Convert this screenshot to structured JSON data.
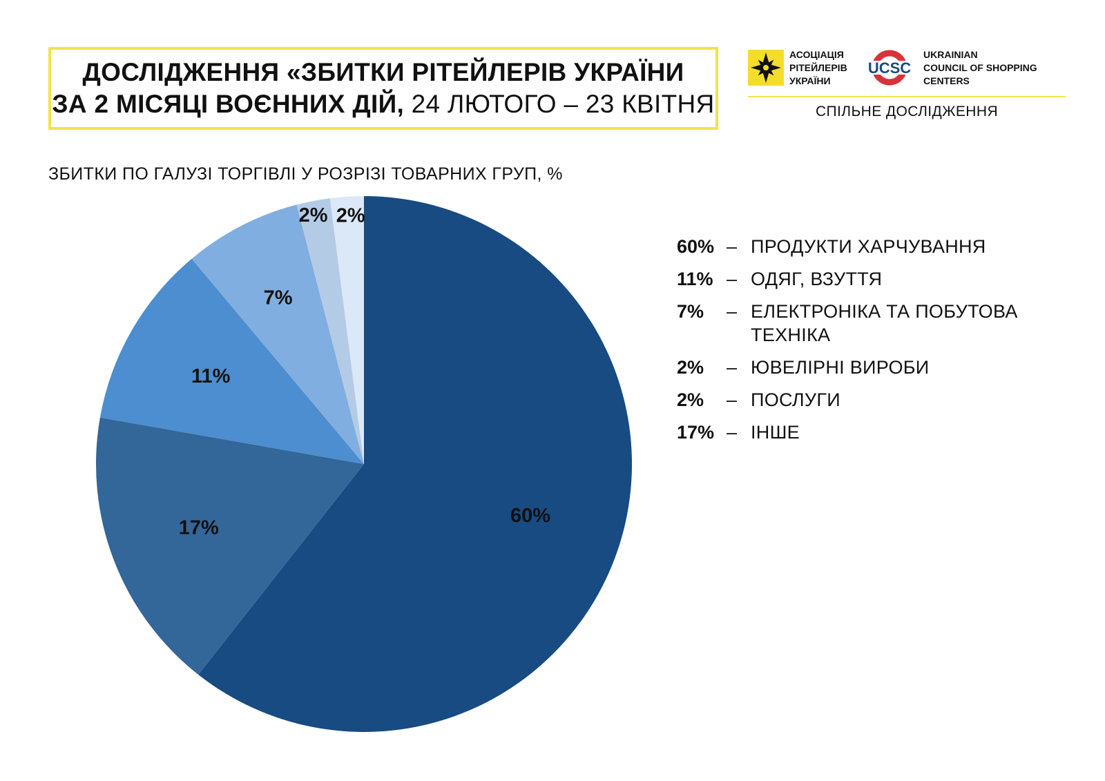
{
  "header": {
    "title_line1": "ДОСЛІДЖЕННЯ «ЗБИТКИ РІТЕЙЛЕРІВ УКРАЇНИ",
    "title_line2_bold": "ЗА 2 МІСЯЦІ ВОЄННИХ ДІЙ,",
    "title_line2_rest": " 24 ЛЮТОГО – 23 КВІТНЯ"
  },
  "logos": {
    "ara_line1": "АСОЦІАЦІЯ",
    "ara_line2": "РІТЕЙЛЕРІВ",
    "ara_line3": "УКРАЇНИ",
    "ucsc_mark": "UCSC",
    "ucsc_line1": "UKRAINIAN",
    "ucsc_line2": "COUNCIL OF SHOPPING",
    "ucsc_line3": "CENTERS",
    "joint_study": "СПІЛЬНЕ ДОСЛІДЖЕННЯ"
  },
  "colors": {
    "accent_yellow": "#f3e24a",
    "logo_red": "#d8333a"
  },
  "chart_data": {
    "type": "pie",
    "title": "ЗБИТКИ ПО ГАЛУЗІ ТОРГІВЛІ У РОЗРІЗІ ТОВАРНИХ ГРУП, %",
    "slices": [
      {
        "label": "ПРОДУКТИ ХАРЧУВАННЯ",
        "value": 60,
        "display": "60%",
        "color": "#174b82"
      },
      {
        "label": "ІНШЕ",
        "value": 17,
        "display": "17%",
        "color": "#336699"
      },
      {
        "label": "ОДЯГ, ВЗУТТЯ",
        "value": 11,
        "display": "11%",
        "color": "#4c8ecf"
      },
      {
        "label": "ЕЛЕКТРОНІКА ТА ПОБУТОВА ТЕХНІКА",
        "value": 7,
        "display": "7%",
        "color": "#80aee0"
      },
      {
        "label": "ЮВЕЛІРНІ ВИРОБИ",
        "value": 2,
        "display": "2%",
        "color": "#b4cbe6"
      },
      {
        "label": "ПОСЛУГИ",
        "value": 2,
        "display": "2%",
        "color": "#dbe8f8"
      }
    ],
    "start_angle": "12 o'clock",
    "direction": "clockwise",
    "legend_placement": "right"
  },
  "legend": [
    {
      "pct": "60%",
      "dash": "–",
      "label": "ПРОДУКТИ ХАРЧУВАННЯ"
    },
    {
      "pct": "11%",
      "dash": "–",
      "label": "ОДЯГ, ВЗУТТЯ"
    },
    {
      "pct": "7%",
      "dash": "–",
      "label": "ЕЛЕКТРОНІКА ТА ПОБУТОВА ТЕХНІКА"
    },
    {
      "pct": "2%",
      "dash": "–",
      "label": "ЮВЕЛІРНІ ВИРОБИ"
    },
    {
      "pct": "2%",
      "dash": "–",
      "label": "ПОСЛУГИ"
    },
    {
      "pct": "17%",
      "dash": "–",
      "label": "ІНШЕ"
    }
  ]
}
